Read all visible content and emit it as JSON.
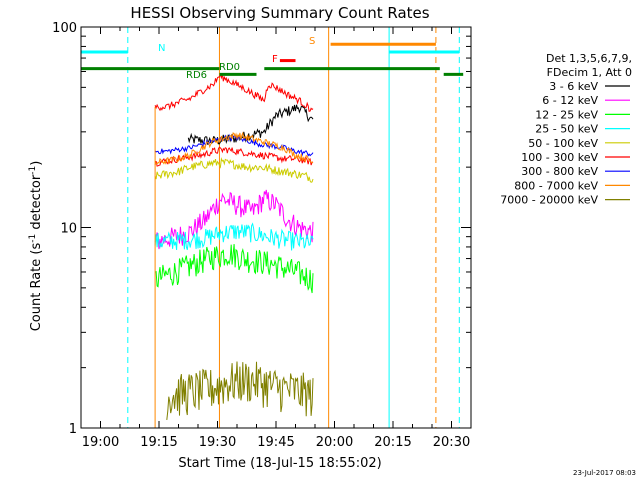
{
  "chart_data": {
    "type": "line",
    "title": "HESSI Observing Summary Count Rates",
    "xlabel": "Start Time (18-Jul-15 18:55:02)",
    "ylabel": "Count Rate (s",
    "ylabel_sup1": "-1",
    "ylabel_mid": " detector",
    "ylabel_sup2": "-1",
    "ylabel_end": ")",
    "yscale": "log",
    "ylim": [
      1,
      100
    ],
    "xlim_minutes_after_start": [
      0,
      100
    ],
    "x_ticks": [
      {
        "t": 5,
        "label": "19:00"
      },
      {
        "t": 20,
        "label": "19:15"
      },
      {
        "t": 35,
        "label": "19:30"
      },
      {
        "t": 50,
        "label": "19:45"
      },
      {
        "t": 65,
        "label": "20:00"
      },
      {
        "t": 80,
        "label": "20:15"
      },
      {
        "t": 95,
        "label": "20:30"
      }
    ],
    "y_ticks": [
      {
        "v": 1,
        "label": "1"
      },
      {
        "v": 10,
        "label": "10"
      },
      {
        "v": 100,
        "label": "100"
      }
    ],
    "legend": {
      "placement": "right",
      "header": [
        "Det 1,3,5,6,7,9,",
        "FDecim 1, Att 0"
      ]
    },
    "series": [
      {
        "name": "3 - 6 keV",
        "color": "#000000",
        "x": [
          27.5,
          34,
          40,
          47,
          50,
          53,
          56,
          59.5
        ],
        "values": [
          27.5,
          27,
          28,
          30,
          36,
          38,
          40,
          34
        ]
      },
      {
        "name": "6 - 12 keV",
        "color": "#ff00ff",
        "x": [
          19,
          24,
          28,
          32,
          36,
          40,
          44,
          47,
          50,
          53,
          56,
          59.5
        ],
        "values": [
          8.5,
          9,
          9.5,
          11,
          14,
          13,
          12,
          14,
          13,
          11,
          10,
          9.5
        ]
      },
      {
        "name": "12 - 25 keV",
        "color": "#00ff00",
        "x": [
          19,
          22,
          26,
          30,
          34,
          38,
          42,
          46,
          50,
          54,
          57,
          59.5
        ],
        "values": [
          5.5,
          5.8,
          6.2,
          6.7,
          7.2,
          7.5,
          7,
          6.8,
          6.5,
          6.1,
          5.8,
          5.5
        ]
      },
      {
        "name": "25 - 50 keV",
        "color": "#00ffff",
        "x": [
          19,
          24,
          28,
          32,
          36,
          40,
          44,
          48,
          52,
          56,
          59.5
        ],
        "values": [
          8.5,
          8.6,
          8.7,
          8.9,
          9.4,
          9.6,
          9.4,
          9,
          8.7,
          8.5,
          8.3
        ]
      },
      {
        "name": "50 - 100 keV",
        "color": "#cccc00",
        "x": [
          19,
          22,
          25,
          28,
          31,
          34,
          37,
          40,
          43,
          46,
          49,
          52,
          55,
          58,
          59.5
        ],
        "values": [
          18,
          18.5,
          19,
          20,
          20.5,
          21,
          21,
          20.5,
          20,
          20,
          19.5,
          19,
          18.5,
          18,
          17.5
        ]
      },
      {
        "name": "100 - 300 keV",
        "color": "#ff0000",
        "x": [
          19,
          22,
          25,
          28,
          31,
          34,
          37,
          40,
          43,
          46,
          49,
          52,
          55,
          58,
          59.5
        ],
        "values": [
          21,
          21.5,
          22,
          22.5,
          23,
          24,
          24.5,
          24,
          23.5,
          23,
          22.5,
          22,
          22,
          21.5,
          21
        ]
      },
      {
        "name": "300 - 800 keV",
        "color": "#0000ff",
        "x": [
          19,
          22,
          25,
          28,
          31,
          34,
          37,
          40,
          43,
          46,
          49,
          52,
          55,
          58,
          59.5
        ],
        "values": [
          24,
          24,
          24.5,
          25,
          26,
          27,
          28,
          28,
          27,
          26,
          25.5,
          25,
          24,
          23.5,
          23
        ]
      },
      {
        "name": "800 - 7000 keV",
        "color": "#ff8800",
        "x": [
          19,
          22,
          25,
          28,
          31,
          34,
          37,
          40,
          43,
          46,
          49,
          52,
          55,
          58,
          59.5
        ],
        "values": [
          21,
          21.5,
          22,
          23,
          25,
          27,
          28,
          29,
          28,
          27,
          26,
          25,
          23,
          22,
          21
        ]
      },
      {
        "name": "7000 - 20000 keV",
        "color": "#808000",
        "x": [
          22,
          26,
          30,
          34,
          38,
          42,
          46,
          50,
          54,
          58,
          59.5
        ],
        "values": [
          1.45,
          1.5,
          1.55,
          1.6,
          1.7,
          1.75,
          1.7,
          1.6,
          1.55,
          1.5,
          1.45
        ]
      }
    ],
    "upper_trace": {
      "color": "#ff0000",
      "x": [
        19,
        22,
        25,
        28,
        31,
        34,
        35.5,
        47,
        48,
        50,
        53,
        56,
        59.5
      ],
      "values": [
        40,
        40,
        42,
        44,
        48,
        52,
        57,
        43,
        52,
        50,
        46,
        43,
        38
      ]
    },
    "annotations": [
      {
        "label": "N",
        "color": "#00ffff"
      },
      {
        "label": "RD0",
        "color": "#008000"
      },
      {
        "label": "RD6",
        "color": "#008000"
      },
      {
        "label": "F",
        "color": "#ff0000"
      },
      {
        "label": "S",
        "color": "#ff8800"
      }
    ]
  },
  "footer": {
    "timestamp": "23-Jul-2017 08:03"
  }
}
